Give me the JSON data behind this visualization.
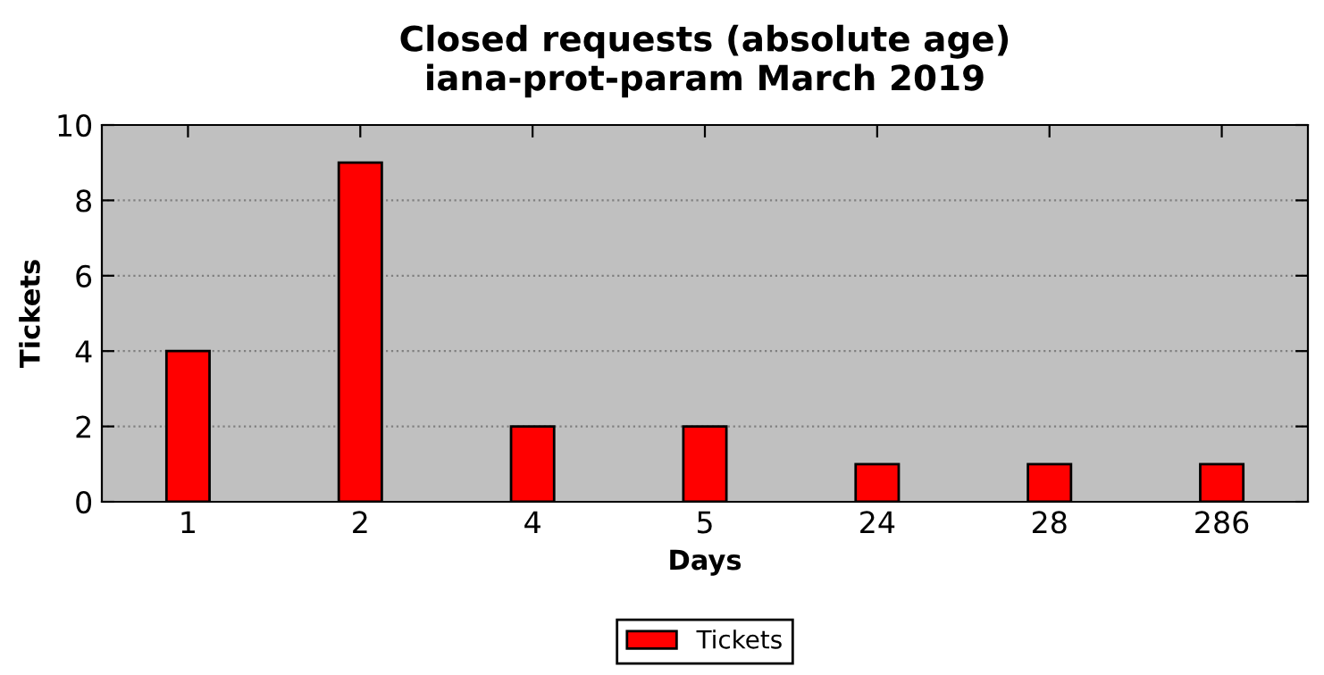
{
  "chart_data": {
    "type": "bar",
    "title": "Closed requests (absolute age)\niana-prot-param March 2019",
    "xlabel": "Days",
    "ylabel": "Tickets",
    "categories": [
      "1",
      "2",
      "4",
      "5",
      "24",
      "28",
      "286"
    ],
    "series": [
      {
        "name": "Tickets",
        "color": "#ff0000",
        "values": [
          4,
          9,
          2,
          2,
          1,
          1,
          1
        ]
      }
    ],
    "ylim": [
      0,
      10
    ],
    "yticks": [
      0,
      2,
      4,
      6,
      8,
      10
    ],
    "grid": "y",
    "legend": "bottom"
  }
}
